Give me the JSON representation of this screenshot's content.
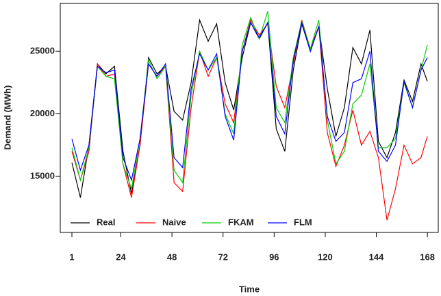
{
  "chart_data": {
    "type": "line",
    "x_label": "Time",
    "y_label": "Demand (MWh)",
    "x": [
      1,
      5,
      9,
      13,
      17,
      21,
      25,
      29,
      33,
      37,
      41,
      45,
      49,
      53,
      57,
      61,
      65,
      69,
      73,
      77,
      81,
      85,
      89,
      93,
      97,
      101,
      105,
      109,
      113,
      117,
      121,
      125,
      129,
      133,
      137,
      141,
      145,
      149,
      153,
      157,
      161,
      165,
      168
    ],
    "series": [
      {
        "name": "Real",
        "color": "#000000",
        "values": [
          16100,
          13300,
          17500,
          24000,
          23200,
          23800,
          17000,
          13600,
          17500,
          24500,
          23200,
          23800,
          20200,
          19500,
          22500,
          27500,
          25800,
          27200,
          22500,
          20300,
          24500,
          27300,
          26000,
          27300,
          18800,
          17000,
          23500,
          27200,
          25000,
          27000,
          22000,
          18200,
          20500,
          25300,
          24000,
          26700,
          17800,
          16500,
          18500,
          22700,
          21000,
          24000,
          22600
        ]
      },
      {
        "name": "Naive",
        "color": "#ff0000",
        "values": [
          17000,
          14700,
          17000,
          24000,
          23000,
          23200,
          16000,
          13300,
          17500,
          24000,
          23000,
          23800,
          14500,
          13800,
          20500,
          25000,
          23000,
          24500,
          20800,
          19300,
          25000,
          27500,
          26300,
          27200,
          22200,
          20500,
          24000,
          27500,
          25200,
          27000,
          18500,
          15800,
          17500,
          20300,
          17500,
          18600,
          16500,
          11500,
          14000,
          17500,
          16000,
          16500,
          18200
        ]
      },
      {
        "name": "FKAM",
        "color": "#00cc00",
        "values": [
          17300,
          14700,
          17300,
          23800,
          23000,
          22800,
          16000,
          14000,
          18000,
          24300,
          22800,
          23800,
          15500,
          14500,
          21500,
          25000,
          23500,
          24500,
          20000,
          18400,
          25500,
          27700,
          26000,
          28200,
          20500,
          19300,
          24500,
          27400,
          25200,
          27500,
          19500,
          16000,
          17000,
          20800,
          21500,
          24000,
          17300,
          17300,
          18000,
          22500,
          20500,
          23500,
          25500
        ]
      },
      {
        "name": "FLM",
        "color": "#0000ff",
        "values": [
          18000,
          15500,
          17500,
          23800,
          23300,
          23500,
          16500,
          14700,
          18000,
          24000,
          23000,
          24000,
          16500,
          15700,
          22000,
          24800,
          23500,
          24800,
          19800,
          17900,
          25000,
          27300,
          26100,
          27300,
          19800,
          18400,
          24300,
          27300,
          25000,
          27000,
          19800,
          17800,
          18500,
          22500,
          22800,
          25000,
          17000,
          16200,
          17500,
          22600,
          20500,
          23500,
          24500
        ]
      }
    ],
    "xlim": [
      -4.47,
      173.1
    ],
    "ylim": [
      10520,
      28830
    ],
    "xticks": [
      1,
      24,
      48,
      72,
      96,
      120,
      144,
      168
    ],
    "yticks": [
      15000,
      20000,
      25000
    ],
    "legend": "bottom-left"
  }
}
